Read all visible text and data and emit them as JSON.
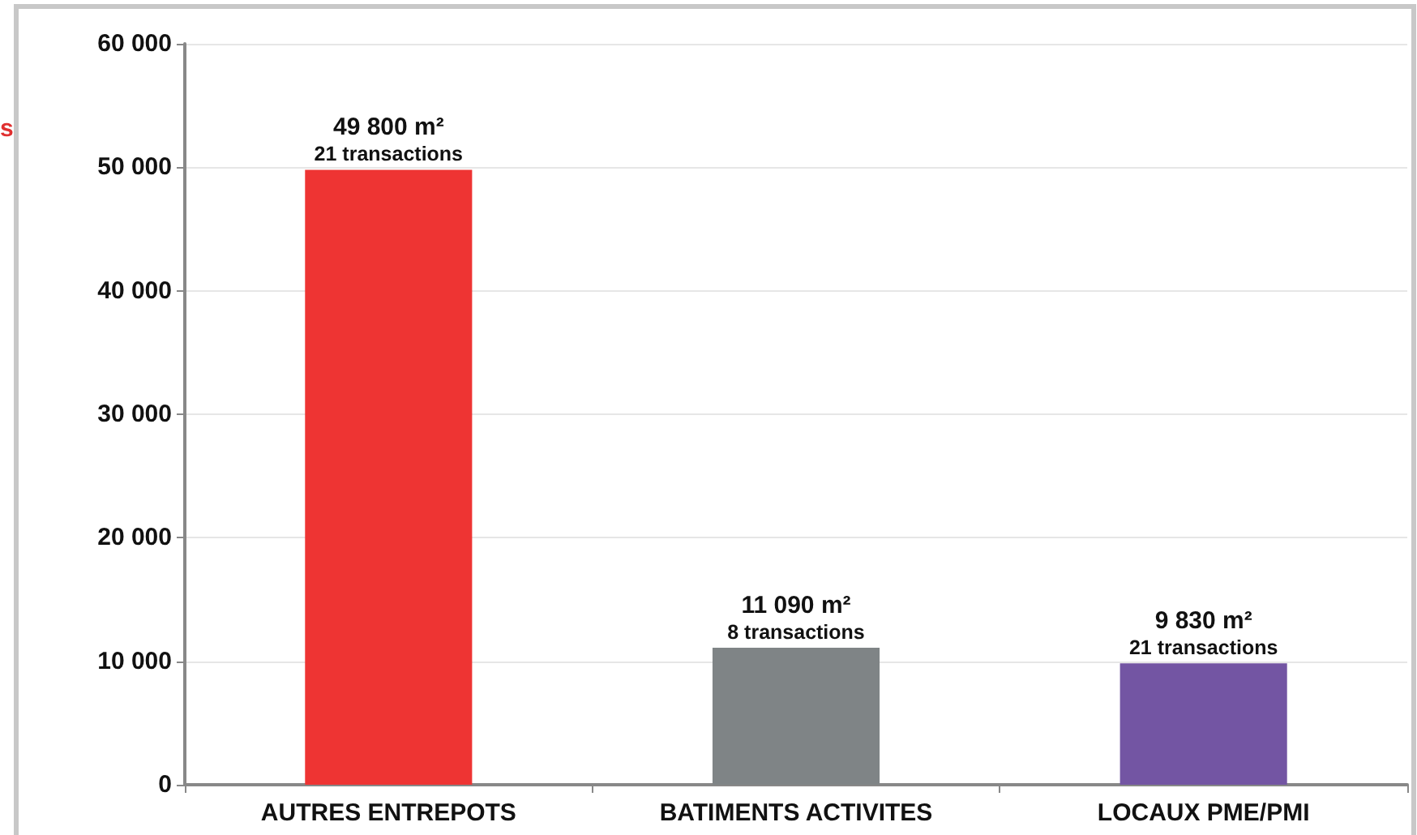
{
  "chart_data": {
    "type": "bar",
    "categories": [
      "AUTRES ENTREPOTS",
      "BATIMENTS ACTIVITES",
      "LOCAUX PME/PMI"
    ],
    "values": [
      49800,
      11090,
      9830
    ],
    "colors": [
      "#ee3433",
      "#7f8486",
      "#7355a3"
    ],
    "value_labels": [
      "49 800 m²\n21 transactions",
      "11 090 m²\n8 transactions",
      "9 830 m²\n21 transactions"
    ],
    "ylim": [
      0,
      60000
    ],
    "yticks": [
      {
        "value": 0,
        "label": "0"
      },
      {
        "value": 10000,
        "label": "10 000"
      },
      {
        "value": 20000,
        "label": "20 000"
      },
      {
        "value": 30000,
        "label": "30 000"
      },
      {
        "value": 40000,
        "label": "40 000"
      },
      {
        "value": 50000,
        "label": "50 000"
      },
      {
        "value": 60000,
        "label": "60 000"
      }
    ],
    "grid": "y",
    "annotations": [
      "s"
    ]
  }
}
